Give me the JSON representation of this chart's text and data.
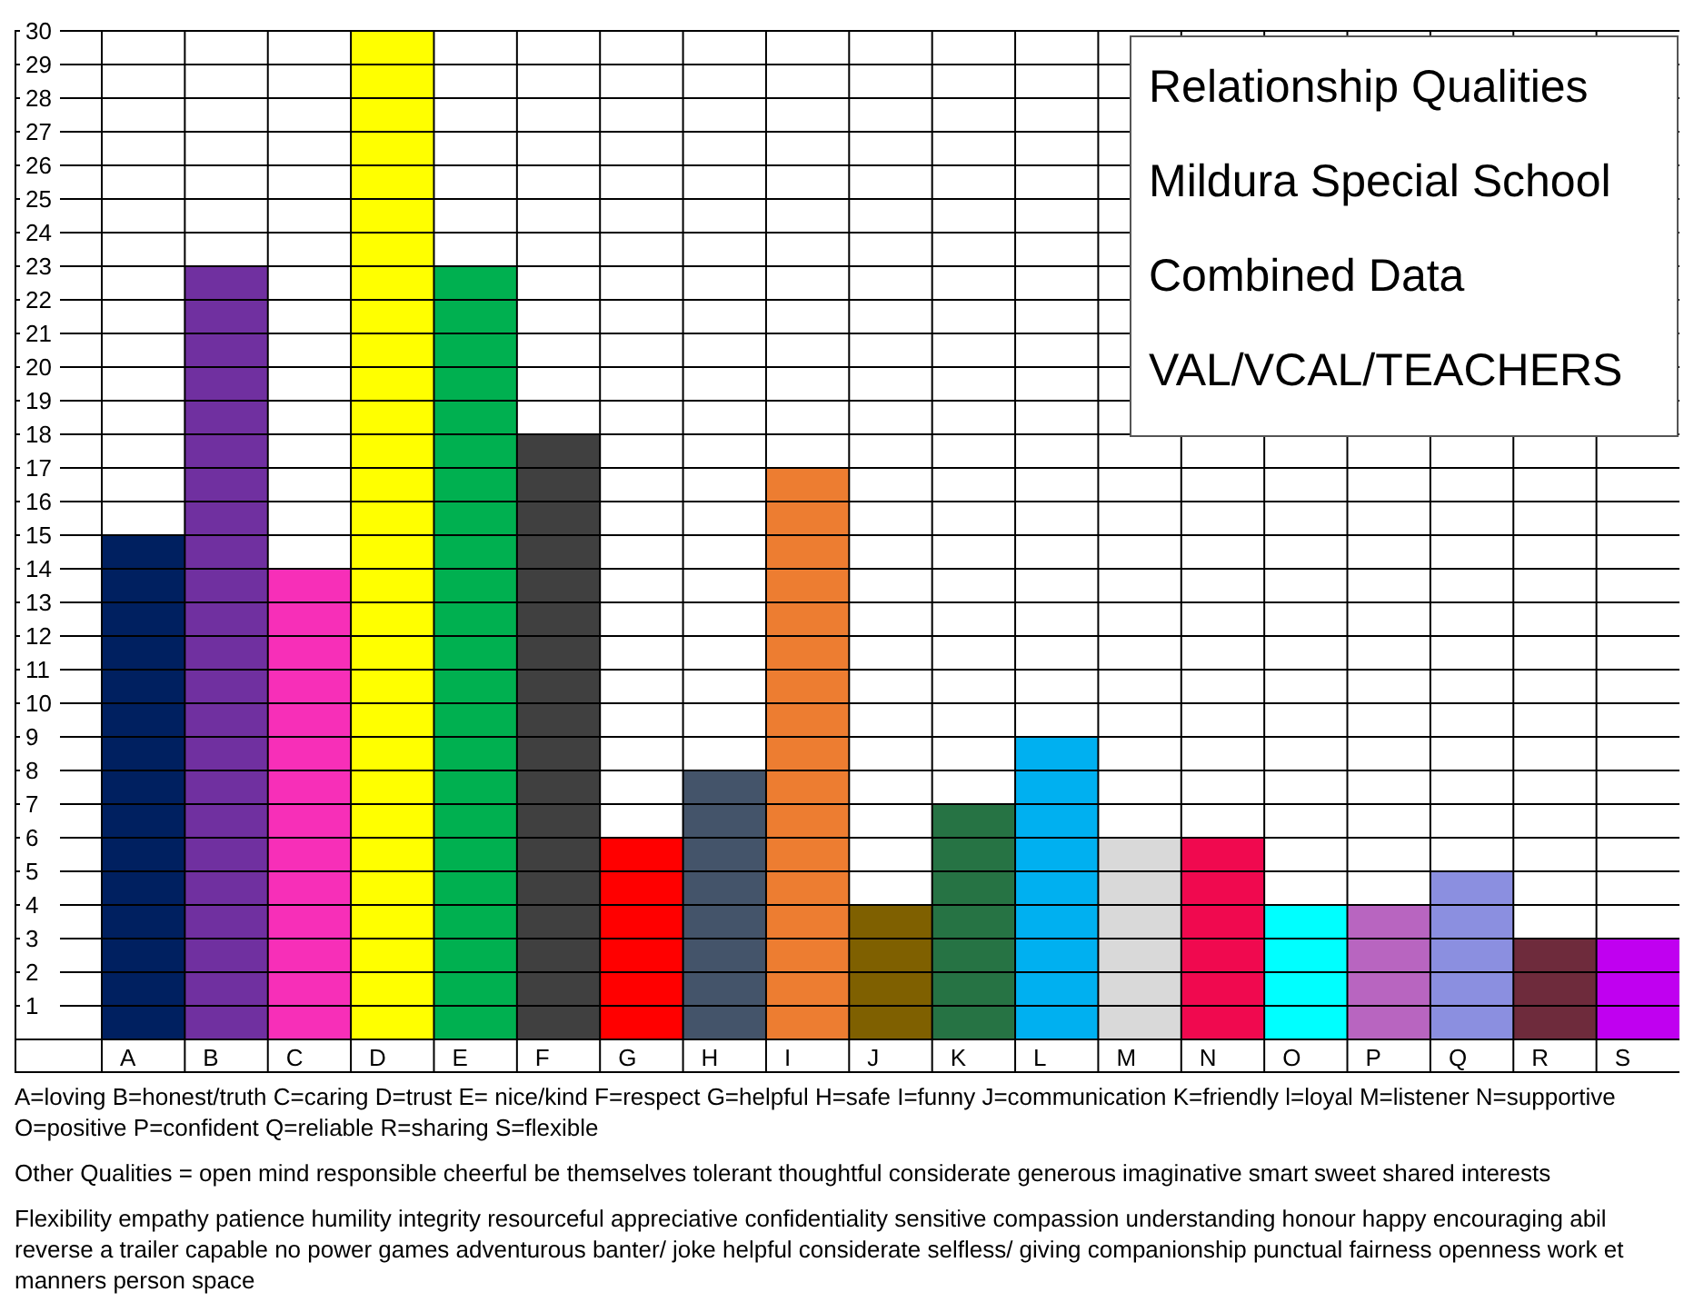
{
  "chart_data": {
    "type": "bar",
    "title": "Relationship Qualities",
    "subtitle": "Mildura Special School",
    "categories": [
      "A",
      "B",
      "C",
      "D",
      "E",
      "F",
      "G",
      "H",
      "I",
      "J",
      "K",
      "L",
      "M",
      "N",
      "O",
      "P",
      "Q",
      "R",
      "S"
    ],
    "values": [
      15,
      23,
      14,
      30,
      23,
      18,
      6,
      8,
      17,
      4,
      7,
      9,
      6,
      6,
      4,
      4,
      5,
      3,
      3
    ],
    "colors": [
      "#002060",
      "#7030a0",
      "#f72fb8",
      "#ffff00",
      "#00b050",
      "#404040",
      "#ff0000",
      "#44546a",
      "#ed7d31",
      "#7f6000",
      "#267344",
      "#00b0f0",
      "#d9d9d9",
      "#f0094f",
      "#00ffff",
      "#b865c0",
      "#8b8fe0",
      "#6e2b3c",
      "#c000f0"
    ],
    "ylim": [
      0,
      30
    ],
    "yticks": [
      1,
      2,
      3,
      4,
      5,
      6,
      7,
      8,
      9,
      10,
      11,
      12,
      13,
      14,
      15,
      16,
      17,
      18,
      19,
      20,
      21,
      22,
      23,
      24,
      25,
      26,
      27,
      28,
      29,
      30
    ],
    "grid": true,
    "annotations": [
      "Combined Data",
      "VAL/VCAL/TEACHERS",
      "A=loving B=honest/truth C=caring D=trust E= nice/kind F=respect G=helpful H=safe I=funny J=communication K=friendly l=loyal M=listener N=supportive O=positive P=confident Q=reliable R=sharing S=flexible",
      "Other Qualities = open mind responsible cheerful be themselves tolerant thoughtful considerate generous imaginative smart sweet shared interests",
      "Flexibility empathy patience humility integrity resourceful appreciative confidentiality sensitive compassion understanding honour happy encouraging abil reverse a trailer capable no power games adventurous banter/ joke helpful considerate selfless/ giving companionship punctual fairness openness work et manners person space"
    ]
  }
}
